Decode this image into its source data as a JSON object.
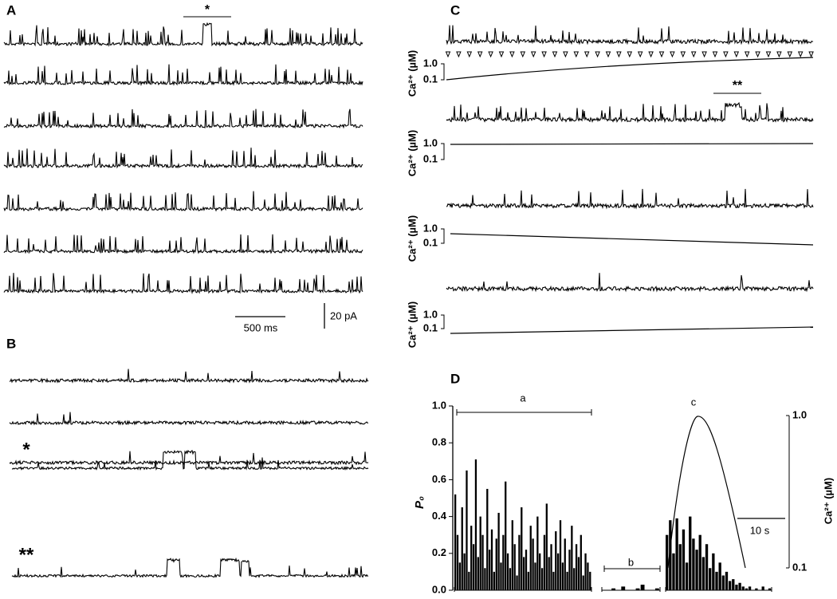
{
  "panels": {
    "A": {
      "label": "A",
      "marker": "*",
      "scale_time": "500 ms",
      "scale_current": "20 pA"
    },
    "B": {
      "label": "B",
      "markers": [
        "*",
        "**"
      ]
    },
    "C": {
      "label": "C",
      "marker": "**",
      "ca_label": "Ca²⁺ (µM)",
      "ca_ticks": [
        [
          "1.0",
          "0.1"
        ],
        [
          "1.0",
          "0.1"
        ],
        [
          "1.0",
          "0.1"
        ],
        [
          "1.0",
          "0.1"
        ]
      ]
    }
  },
  "chart_data": {
    "type": "bar",
    "panel_label": "D",
    "ylabel": "P₀",
    "ylim": [
      0,
      1
    ],
    "yticks": [
      {
        "value": 0,
        "label": "0.0"
      },
      0.2,
      0.4,
      0.6,
      0.8,
      {
        "value": 1,
        "label": "1.0"
      }
    ],
    "y2label": "Ca²⁺ (µM)",
    "y2scale": "log",
    "y2lim": [
      0.1,
      1
    ],
    "y2ticks": [
      {
        "value": 1,
        "label": "1.0"
      },
      0.1
    ],
    "scale_bar": "10 s",
    "color": "#000000",
    "series": [
      {
        "name": "a",
        "values": [
          0.52,
          0.3,
          0.15,
          0.45,
          0.2,
          0.65,
          0.1,
          0.35,
          0.25,
          0.71,
          0.18,
          0.4,
          0.3,
          0.12,
          0.55,
          0.22,
          0.33,
          0.1,
          0.28,
          0.42,
          0.15,
          0.3,
          0.59,
          0.2,
          0.12,
          0.38,
          0.25,
          0.08,
          0.3,
          0.45,
          0.18,
          0.22,
          0.1,
          0.35,
          0.28,
          0.15,
          0.4,
          0.2,
          0.12,
          0.3,
          0.47,
          0.18,
          0.25,
          0.1,
          0.32,
          0.2,
          0.38,
          0.15,
          0.28,
          0.1,
          0.22,
          0.35,
          0.12,
          0.25,
          0.18,
          0.3,
          0.08,
          0.2,
          0.15,
          0.1
        ]
      },
      {
        "name": "b",
        "values": [
          0,
          0,
          0.01,
          0,
          0.02,
          0,
          0,
          0.01,
          0.03,
          0,
          0,
          0.01
        ]
      },
      {
        "name": "c",
        "values": [
          0.3,
          0.38,
          0.2,
          0.39,
          0.25,
          0.33,
          0.15,
          0.4,
          0.28,
          0.22,
          0.3,
          0.18,
          0.25,
          0.12,
          0.2,
          0.1,
          0.15,
          0.08,
          0.1,
          0.05,
          0.06,
          0.03,
          0.04,
          0.02,
          0.01,
          0.02,
          0,
          0.01,
          0,
          0.02,
          0,
          0.01
        ]
      }
    ]
  }
}
